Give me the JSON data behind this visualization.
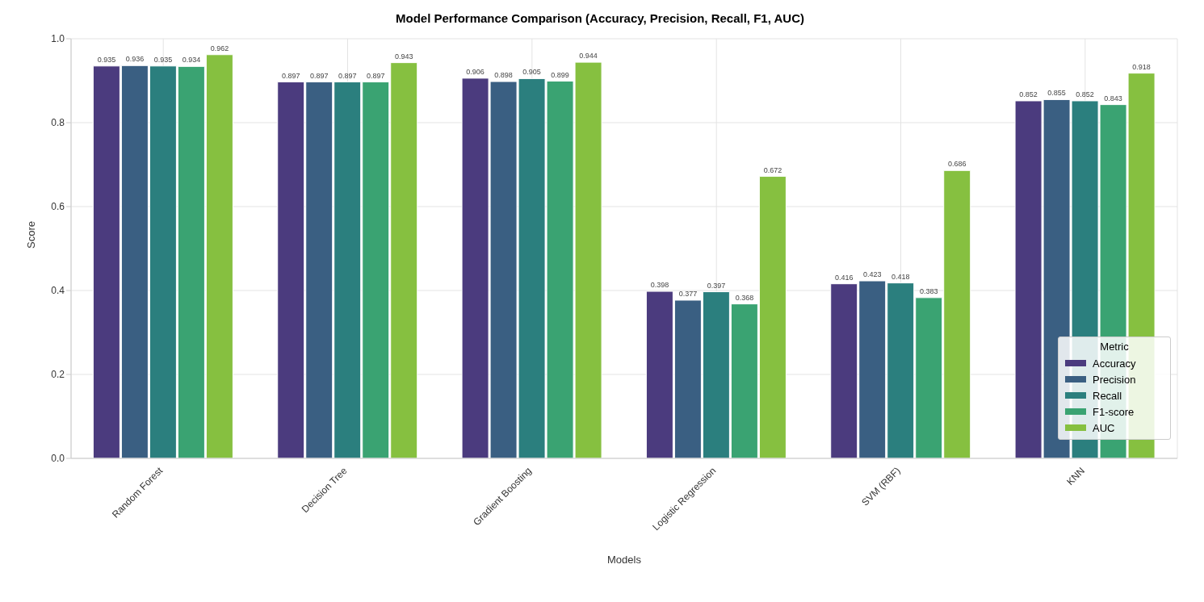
{
  "chart_data": {
    "type": "bar",
    "title": "Model Performance Comparison (Accuracy, Precision, Recall, F1, AUC)",
    "xlabel": "Models",
    "ylabel": "Score",
    "legend_title": "Metric",
    "categories": [
      "Random Forest",
      "Decision Tree",
      "Gradient Boosting",
      "Logistic Regression",
      "SVM (RBF)",
      "KNN"
    ],
    "series": [
      {
        "name": "Accuracy",
        "color": "#4b3b7e",
        "values": [
          0.935,
          0.897,
          0.906,
          0.398,
          0.416,
          0.852
        ]
      },
      {
        "name": "Precision",
        "color": "#3a5f82",
        "values": [
          0.936,
          0.897,
          0.898,
          0.377,
          0.423,
          0.855
        ]
      },
      {
        "name": "Recall",
        "color": "#2b7f7e",
        "values": [
          0.935,
          0.897,
          0.905,
          0.397,
          0.418,
          0.852
        ]
      },
      {
        "name": "F1-score",
        "color": "#3aa372",
        "values": [
          0.934,
          0.897,
          0.899,
          0.368,
          0.383,
          0.843
        ]
      },
      {
        "name": "AUC",
        "color": "#86c040",
        "values": [
          0.962,
          0.943,
          0.944,
          0.672,
          0.686,
          0.918
        ]
      }
    ],
    "ylim": [
      0,
      1
    ],
    "yticks": [
      {
        "value": 0,
        "label": "0.0"
      },
      0.2,
      0.4,
      0.6,
      0.8,
      {
        "value": 1,
        "label": "1.0"
      }
    ],
    "grid": true,
    "legend": "bottom right",
    "data_labels": true
  }
}
